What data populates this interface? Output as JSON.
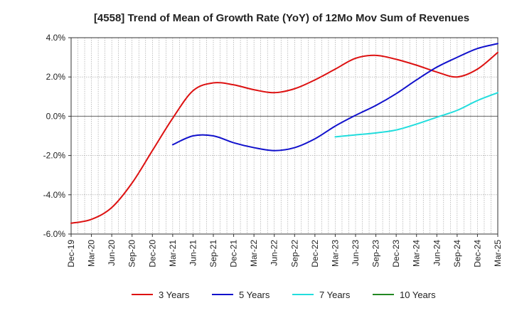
{
  "chart_data": {
    "type": "line",
    "title": "[4558]  Trend of Mean of Growth Rate (YoY) of 12Mo Mov Sum of Revenues",
    "xlabel": "",
    "ylabel": "",
    "ylim": [
      -6.0,
      4.0
    ],
    "yticks": [
      {
        "value": 4.0,
        "label": "4.0%"
      },
      {
        "value": 2.0,
        "label": "2.0%"
      },
      {
        "value": 0.0,
        "label": "0.0%"
      },
      {
        "value": -2.0,
        "label": "-2.0%"
      },
      {
        "value": -4.0,
        "label": "-4.0%"
      },
      {
        "value": -6.0,
        "label": "-6.0%"
      }
    ],
    "x_start": "Dec-19",
    "x_end": "Mar-25",
    "x_months": 63,
    "xticks": [
      "Dec-19",
      "Mar-20",
      "Jun-20",
      "Sep-20",
      "Dec-20",
      "Mar-21",
      "Jun-21",
      "Sep-21",
      "Dec-21",
      "Mar-22",
      "Jun-22",
      "Sep-22",
      "Dec-22",
      "Mar-23",
      "Jun-23",
      "Sep-23",
      "Dec-23",
      "Mar-24",
      "Jun-24",
      "Sep-24",
      "Dec-24",
      "Mar-25"
    ],
    "grid": true,
    "legend_position": "bottom",
    "series": [
      {
        "name": "3 Years",
        "color": "#dd1111",
        "points": [
          [
            0,
            -5.45
          ],
          [
            3,
            -5.25
          ],
          [
            6,
            -4.65
          ],
          [
            9,
            -3.4
          ],
          [
            12,
            -1.75
          ],
          [
            15,
            -0.1
          ],
          [
            18,
            1.3
          ],
          [
            21,
            1.7
          ],
          [
            24,
            1.6
          ],
          [
            27,
            1.35
          ],
          [
            30,
            1.2
          ],
          [
            33,
            1.4
          ],
          [
            36,
            1.85
          ],
          [
            39,
            2.4
          ],
          [
            42,
            2.95
          ],
          [
            45,
            3.1
          ],
          [
            48,
            2.9
          ],
          [
            51,
            2.6
          ],
          [
            54,
            2.25
          ],
          [
            57,
            2.0
          ],
          [
            60,
            2.4
          ],
          [
            63,
            3.25
          ]
        ]
      },
      {
        "name": "5 Years",
        "color": "#1111cc",
        "points": [
          [
            15,
            -1.45
          ],
          [
            18,
            -1.0
          ],
          [
            21,
            -1.0
          ],
          [
            24,
            -1.35
          ],
          [
            27,
            -1.6
          ],
          [
            30,
            -1.75
          ],
          [
            33,
            -1.6
          ],
          [
            36,
            -1.15
          ],
          [
            39,
            -0.5
          ],
          [
            42,
            0.05
          ],
          [
            45,
            0.55
          ],
          [
            48,
            1.15
          ],
          [
            51,
            1.85
          ],
          [
            54,
            2.5
          ],
          [
            57,
            3.0
          ],
          [
            60,
            3.45
          ],
          [
            63,
            3.7
          ]
        ]
      },
      {
        "name": "7 Years",
        "color": "#22dddd",
        "points": [
          [
            39,
            -1.05
          ],
          [
            42,
            -0.95
          ],
          [
            45,
            -0.85
          ],
          [
            48,
            -0.7
          ],
          [
            51,
            -0.4
          ],
          [
            54,
            -0.05
          ],
          [
            57,
            0.3
          ],
          [
            60,
            0.8
          ],
          [
            63,
            1.2
          ]
        ]
      },
      {
        "name": "10 Years",
        "color": "#228822",
        "points": []
      }
    ]
  }
}
